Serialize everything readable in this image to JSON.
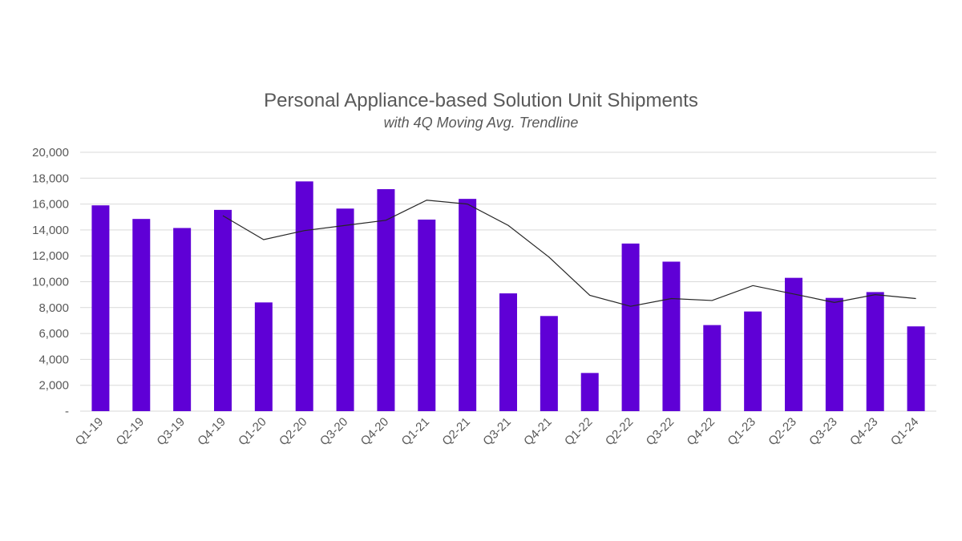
{
  "chart_data": {
    "type": "bar",
    "title": "Personal Appliance-based Solution Unit Shipments",
    "subtitle": "with 4Q Moving Avg. Trendline",
    "categories": [
      "Q1-19",
      "Q2-19",
      "Q3-19",
      "Q4-19",
      "Q1-20",
      "Q2-20",
      "Q3-20",
      "Q4-20",
      "Q1-21",
      "Q2-21",
      "Q3-21",
      "Q4-21",
      "Q1-22",
      "Q2-22",
      "Q3-22",
      "Q4-22",
      "Q1-23",
      "Q2-23",
      "Q3-23",
      "Q4-23",
      "Q1-24"
    ],
    "series": [
      {
        "type": "bar",
        "values": [
          15900,
          14850,
          14150,
          15550,
          8400,
          17750,
          15650,
          17150,
          14800,
          16400,
          9100,
          7350,
          2950,
          12950,
          11550,
          6650,
          7700,
          10300,
          8750,
          9200,
          6550
        ]
      },
      {
        "type": "line",
        "values": [
          null,
          null,
          null,
          15100,
          13250,
          13950,
          14350,
          14750,
          16300,
          16000,
          14350,
          11900,
          8950,
          8100,
          8700,
          8550,
          9700,
          9050,
          8400,
          9000,
          8700
        ]
      }
    ],
    "y_ticks": [
      "-",
      "2,000",
      "4,000",
      "6,000",
      "8,000",
      "10,000",
      "12,000",
      "14,000",
      "16,000",
      "18,000",
      "20,000"
    ],
    "ylim": [
      0,
      20000
    ],
    "grid": true,
    "legend": "none",
    "colors": {
      "bar": "#5f00d6",
      "line": "#262626",
      "grid": "#d9d9d9",
      "text": "#595959"
    }
  }
}
